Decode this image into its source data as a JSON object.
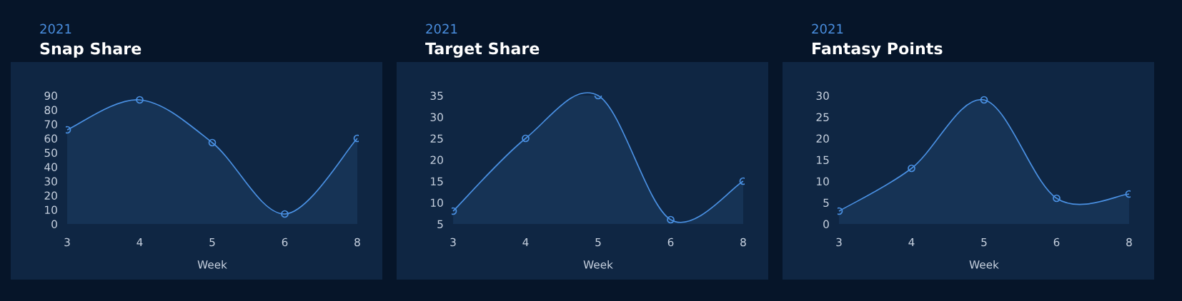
{
  "chart_data": [
    {
      "type": "area",
      "subtitle": "2021",
      "title": "Snap Share",
      "xlabel": "Week",
      "categories": [
        "3",
        "4",
        "5",
        "6",
        "8"
      ],
      "series": [
        {
          "color": "#4a90e2",
          "values": [
            66,
            87,
            57,
            7,
            60
          ]
        }
      ],
      "ylim": [
        0,
        90
      ],
      "yticks": [
        0,
        10,
        20,
        30,
        40,
        50,
        60,
        70,
        80,
        90
      ],
      "marker": "circle",
      "grid": false,
      "legend": false
    },
    {
      "type": "area",
      "subtitle": "2021",
      "title": "Target Share",
      "xlabel": "Week",
      "categories": [
        "3",
        "4",
        "5",
        "6",
        "8"
      ],
      "series": [
        {
          "color": "#4a90e2",
          "values": [
            8,
            25,
            35,
            6,
            15
          ]
        }
      ],
      "ylim": [
        5,
        35
      ],
      "yticks": [
        5,
        10,
        15,
        20,
        25,
        30,
        35
      ],
      "marker": "circle",
      "grid": false,
      "legend": false
    },
    {
      "type": "area",
      "subtitle": "2021",
      "title": "Fantasy Points",
      "xlabel": "Week",
      "categories": [
        "3",
        "4",
        "5",
        "6",
        "8"
      ],
      "series": [
        {
          "color": "#4a90e2",
          "values": [
            3,
            13,
            29,
            6,
            7
          ]
        }
      ],
      "ylim": [
        0,
        30
      ],
      "yticks": [
        0,
        5,
        10,
        15,
        20,
        25,
        30
      ],
      "marker": "circle",
      "grid": false,
      "legend": false
    }
  ]
}
